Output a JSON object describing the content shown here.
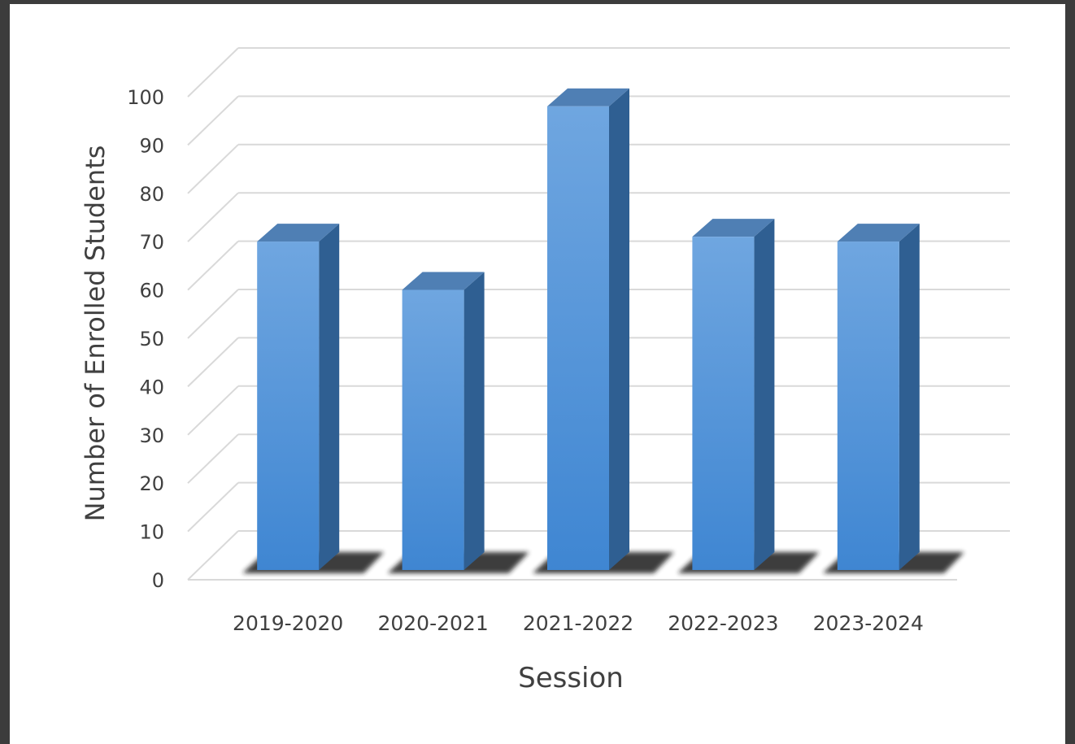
{
  "chart_data": {
    "type": "bar",
    "style": "3d-column",
    "categories": [
      "2019-2020",
      "2020-2021",
      "2021-2022",
      "2022-2023",
      "2023-2024"
    ],
    "values": [
      68,
      58,
      96,
      69,
      68
    ],
    "title": "",
    "xlabel": "Session",
    "ylabel": "Number of Enrolled Students",
    "ylim": [
      0,
      100
    ],
    "yticks": [
      0,
      10,
      20,
      30,
      40,
      50,
      60,
      70,
      80,
      90,
      100
    ],
    "grid": true,
    "legend": "none",
    "colors": {
      "bar_front_top": "#6fa6e0",
      "bar_front_bottom": "#3f86d2",
      "bar_side": "#2f5f92",
      "bar_top": "#4f7fb4",
      "grid": "#d9d9d9",
      "text": "#404040"
    }
  }
}
